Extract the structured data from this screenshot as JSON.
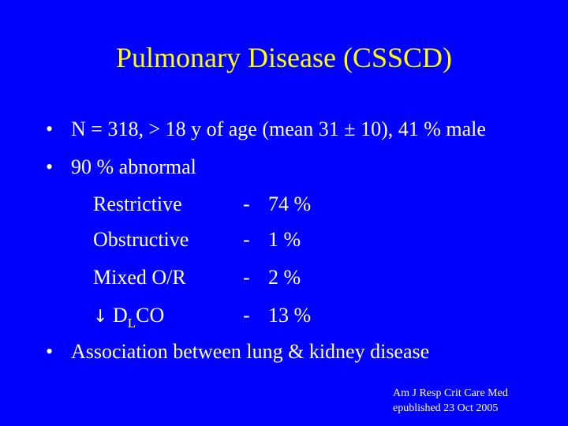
{
  "title": "Pulmonary Disease (CSSCD)",
  "bullets": [
    {
      "marker": "•",
      "text": "N = 318, > 18 y of age (mean 31 ± 10), 41 % male"
    },
    {
      "marker": "•",
      "text": "90 % abnormal"
    },
    {
      "marker": "•",
      "text": "Association between lung & kidney disease"
    }
  ],
  "abnormal_breakdown": [
    {
      "label": "Restrictive",
      "dash": "-",
      "value": "74 %"
    },
    {
      "label": "Obstructive",
      "dash": "-",
      "value": "1 %"
    },
    {
      "label": "Mixed O/R",
      "dash": "-",
      "value": "2 %"
    },
    {
      "arrow": "↓",
      "label_main": "D",
      "label_sub": "L",
      "label_tail": "CO",
      "dash": "-",
      "value": "13 %"
    }
  ],
  "citation": {
    "line1": "Am J Resp Crit Care Med",
    "line2": "epublished 23 Oct 2005"
  },
  "colors": {
    "background": "#0000ff",
    "title": "#ffff00",
    "text": "#ffffff"
  }
}
